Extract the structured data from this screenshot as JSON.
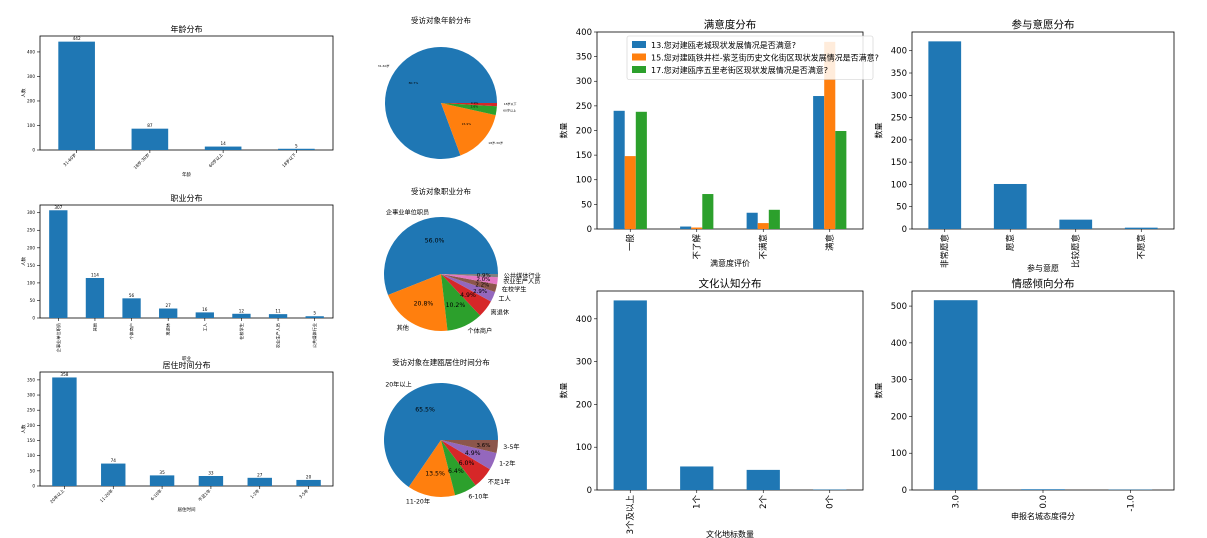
{
  "colors": {
    "blue": "#1f77b4",
    "orange": "#ff7f0e",
    "green": "#2ca02c",
    "red": "#d62728",
    "purple": "#9467bd",
    "brown": "#8c564b",
    "pink": "#e377c2"
  },
  "chart_data": [
    {
      "id": "age_bar",
      "type": "bar",
      "title": "年龄分布",
      "xlabel": "年龄",
      "ylabel": "人数",
      "categories": [
        "31-60岁",
        "18岁-30岁",
        "60岁以上",
        "18岁以下"
      ],
      "values": [
        442,
        87,
        14,
        5
      ],
      "ylim": [
        0,
        465
      ],
      "yticks": [
        0,
        100,
        200,
        300,
        400
      ],
      "value_labels": true,
      "tick_rotation": 45
    },
    {
      "id": "job_bar",
      "type": "bar",
      "title": "职业分布",
      "xlabel": "职业",
      "ylabel": "人数",
      "categories": [
        "企事业单位职员",
        "其他",
        "个体商户",
        "离退休",
        "工人",
        "在校学生",
        "农业生产人员",
        "公共媒体行业"
      ],
      "values": [
        307,
        114,
        56,
        27,
        16,
        12,
        11,
        5
      ],
      "ylim": [
        0,
        322
      ],
      "yticks": [
        0,
        50,
        100,
        150,
        200,
        250,
        300
      ],
      "value_labels": true,
      "tick_rotation": 90
    },
    {
      "id": "res_bar",
      "type": "bar",
      "title": "居住时间分布",
      "xlabel": "居住时间",
      "ylabel": "人数",
      "categories": [
        "20年以上",
        "11-20年",
        "6-10年",
        "不足1年",
        "1-2年",
        "3-5年"
      ],
      "values": [
        358,
        74,
        35,
        33,
        27,
        20
      ],
      "ylim": [
        0,
        376
      ],
      "yticks": [
        0,
        50,
        100,
        150,
        200,
        250,
        300,
        350
      ],
      "value_labels": true,
      "tick_rotation": 45
    },
    {
      "id": "age_pie",
      "type": "pie",
      "title": "受访对象年龄分布",
      "slices": [
        {
          "label": "31-60岁",
          "value": 442,
          "pct": "80.7%",
          "color": "#1f77b4"
        },
        {
          "label": "18岁-30岁",
          "value": 87,
          "pct": "15.9%",
          "color": "#ff7f0e"
        },
        {
          "label": "60岁以上",
          "value": 14,
          "pct": "2.6%",
          "color": "#2ca02c"
        },
        {
          "label": "18岁以下",
          "value": 5,
          "pct": "0.9%",
          "color": "#d62728"
        }
      ]
    },
    {
      "id": "job_pie",
      "type": "pie",
      "title": "受访对象职业分布",
      "slices": [
        {
          "label": "企事业单位职员",
          "value": 307,
          "pct": "56.0%",
          "color": "#1f77b4"
        },
        {
          "label": "其他",
          "value": 114,
          "pct": "20.8%",
          "color": "#ff7f0e"
        },
        {
          "label": "个体商户",
          "value": 56,
          "pct": "10.2%",
          "color": "#2ca02c"
        },
        {
          "label": "离退休",
          "value": 27,
          "pct": "4.9%",
          "color": "#d62728"
        },
        {
          "label": "工人",
          "value": 16,
          "pct": "2.9%",
          "color": "#9467bd"
        },
        {
          "label": "在校学生",
          "value": 12,
          "pct": "2.2%",
          "color": "#8c564b"
        },
        {
          "label": "农业生产人员",
          "value": 11,
          "pct": "2.0%",
          "color": "#e377c2"
        },
        {
          "label": "公共媒体行业",
          "value": 5,
          "pct": "0.9%",
          "color": "#7f7f7f"
        }
      ]
    },
    {
      "id": "res_pie",
      "type": "pie",
      "title": "受访对象在建瓯居住时间分布",
      "slices": [
        {
          "label": "20年以上",
          "value": 358,
          "pct": "65.5%",
          "color": "#1f77b4"
        },
        {
          "label": "11-20年",
          "value": 74,
          "pct": "13.5%",
          "color": "#ff7f0e"
        },
        {
          "label": "6-10年",
          "value": 35,
          "pct": "6.4%",
          "color": "#2ca02c"
        },
        {
          "label": "不足1年",
          "value": 33,
          "pct": "6.0%",
          "color": "#d62728"
        },
        {
          "label": "1-2年",
          "value": 27,
          "pct": "4.9%",
          "color": "#9467bd"
        },
        {
          "label": "3-5年",
          "value": 20,
          "pct": "3.6%",
          "color": "#8c564b"
        }
      ]
    },
    {
      "id": "satisfaction",
      "type": "bar",
      "title": "满意度分布",
      "xlabel": "满意度评价",
      "ylabel": "数量",
      "categories": [
        "一般",
        "不了解",
        "不满意",
        "满意"
      ],
      "series": [
        {
          "name": "13.您对建瓯老城现状发展情况是否满意?",
          "values": [
            240,
            5,
            33,
            270
          ],
          "color": "#1f77b4"
        },
        {
          "name": "15.您对建瓯铁井栏-紫芝街历史文化街区现状发展情况是否满意?",
          "values": [
            148,
            3,
            12,
            380
          ],
          "color": "#ff7f0e"
        },
        {
          "name": "17.您对建瓯序五里老街区现状发展情况是否满意?",
          "values": [
            238,
            71,
            39,
            199
          ],
          "color": "#2ca02c"
        }
      ],
      "ylim": [
        0,
        400
      ],
      "yticks": [
        0,
        50,
        100,
        150,
        200,
        250,
        300,
        350,
        400
      ],
      "tick_rotation": 90,
      "legend": "upper-left"
    },
    {
      "id": "participation",
      "type": "bar",
      "title": "参与意愿分布",
      "xlabel": "参与意愿",
      "ylabel": "数量",
      "categories": [
        "非常愿意",
        "愿意",
        "比较愿意",
        "不愿意"
      ],
      "values": [
        421,
        101,
        21,
        3
      ],
      "ylim": [
        0,
        442
      ],
      "yticks": [
        0,
        50,
        100,
        150,
        200,
        250,
        300,
        350,
        400
      ],
      "tick_rotation": 90
    },
    {
      "id": "awareness",
      "type": "bar",
      "title": "文化认知分布",
      "xlabel": "文化地标数量",
      "ylabel": "数量",
      "categories": [
        "3个及以上",
        "1个",
        "2个",
        "0个"
      ],
      "values": [
        443,
        55,
        47,
        1
      ],
      "ylim": [
        0,
        465
      ],
      "yticks": [
        0,
        100,
        200,
        300,
        400
      ],
      "tick_rotation": 90
    },
    {
      "id": "sentiment",
      "type": "bar",
      "title": "情感倾向分布",
      "xlabel": "申报名城态度得分",
      "ylabel": "数量",
      "categories": [
        "3.0",
        "0.0",
        "-1.0"
      ],
      "values": [
        516,
        2,
        1
      ],
      "ylim": [
        0,
        541
      ],
      "yticks": [
        0,
        100,
        200,
        300,
        400,
        500
      ],
      "tick_rotation": 90
    }
  ]
}
